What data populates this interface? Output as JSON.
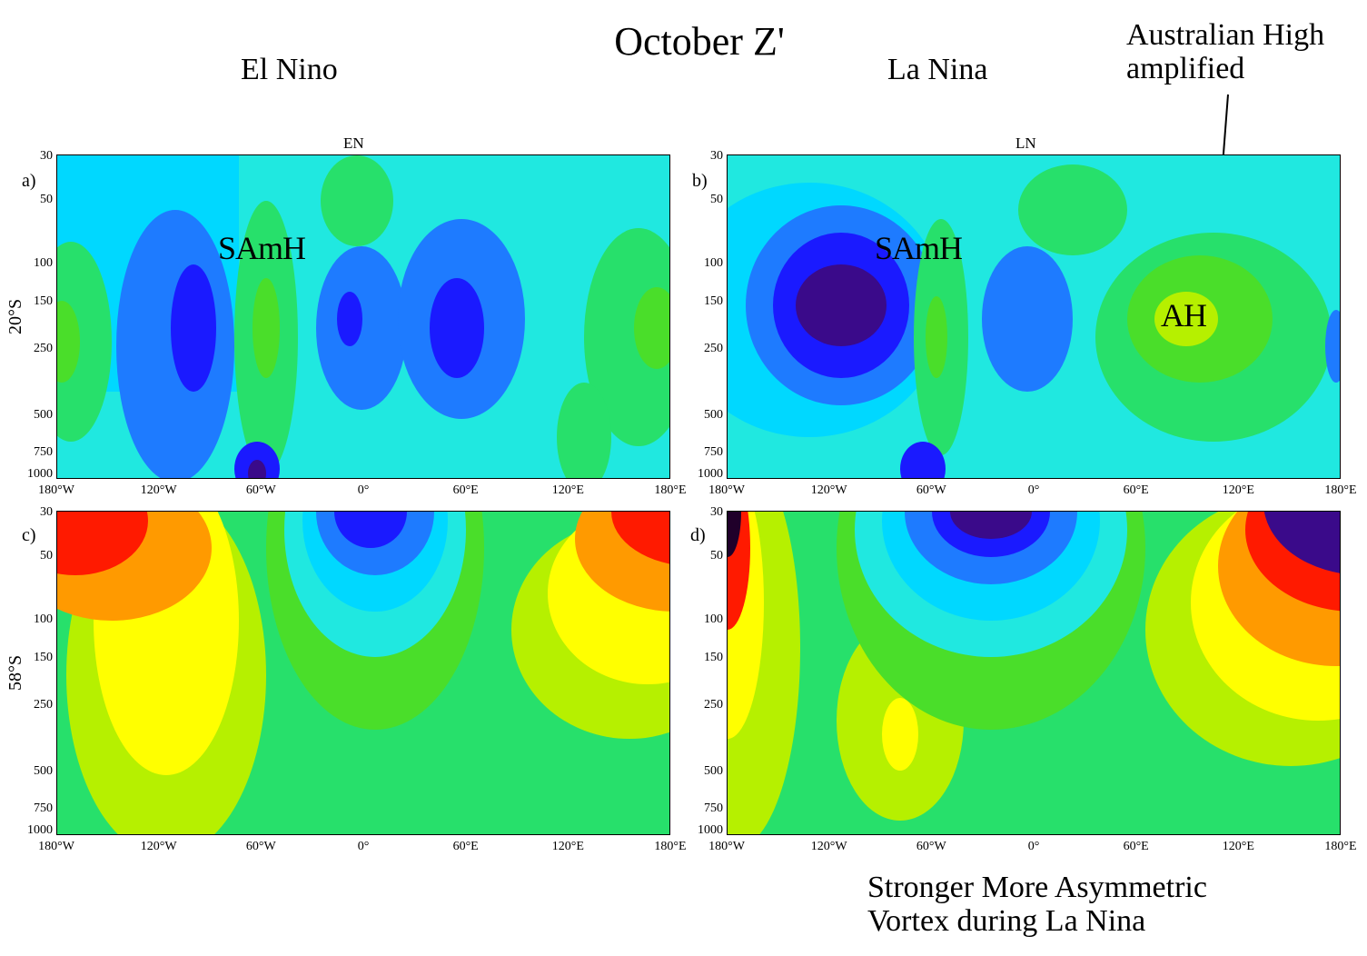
{
  "title": "October   Z'",
  "headers": {
    "left": "El Nino",
    "right": "La Nina"
  },
  "annotation_top": {
    "line1": "Australian High",
    "line2": "amplified"
  },
  "annotation_bottom": {
    "line1": "Stronger More Asymmetric",
    "line2": "Vortex during La Nina"
  },
  "panels": {
    "a": {
      "letter": "a)",
      "top_label": "EN",
      "feature": "SAmH"
    },
    "b": {
      "letter": "b)",
      "top_label": "LN",
      "feature": "SAmH",
      "feature2": "AH"
    },
    "c": {
      "letter": "c)"
    },
    "d": {
      "letter": "d)"
    }
  },
  "row_labels": {
    "top": "20°S",
    "bottom": "58°S"
  },
  "y_ticks": [
    "30",
    "50",
    "100",
    "150",
    "250",
    "500",
    "750",
    "1000"
  ],
  "x_ticks": [
    "180°W",
    "120°W",
    "60°W",
    "0°",
    "60°E",
    "120°E",
    "180°E"
  ],
  "colors": {
    "deep_blue": "#1a1aff",
    "blue": "#1e7bff",
    "sky": "#00d8ff",
    "cyan": "#20e8e0",
    "green": "#27e06b",
    "lime": "#4ade2a",
    "yellow_green": "#b6f000",
    "yellow": "#ffff00",
    "orange": "#ff9a00",
    "red": "#ff1a00",
    "purple": "#3a0a8a",
    "dark": "#20002a"
  }
}
